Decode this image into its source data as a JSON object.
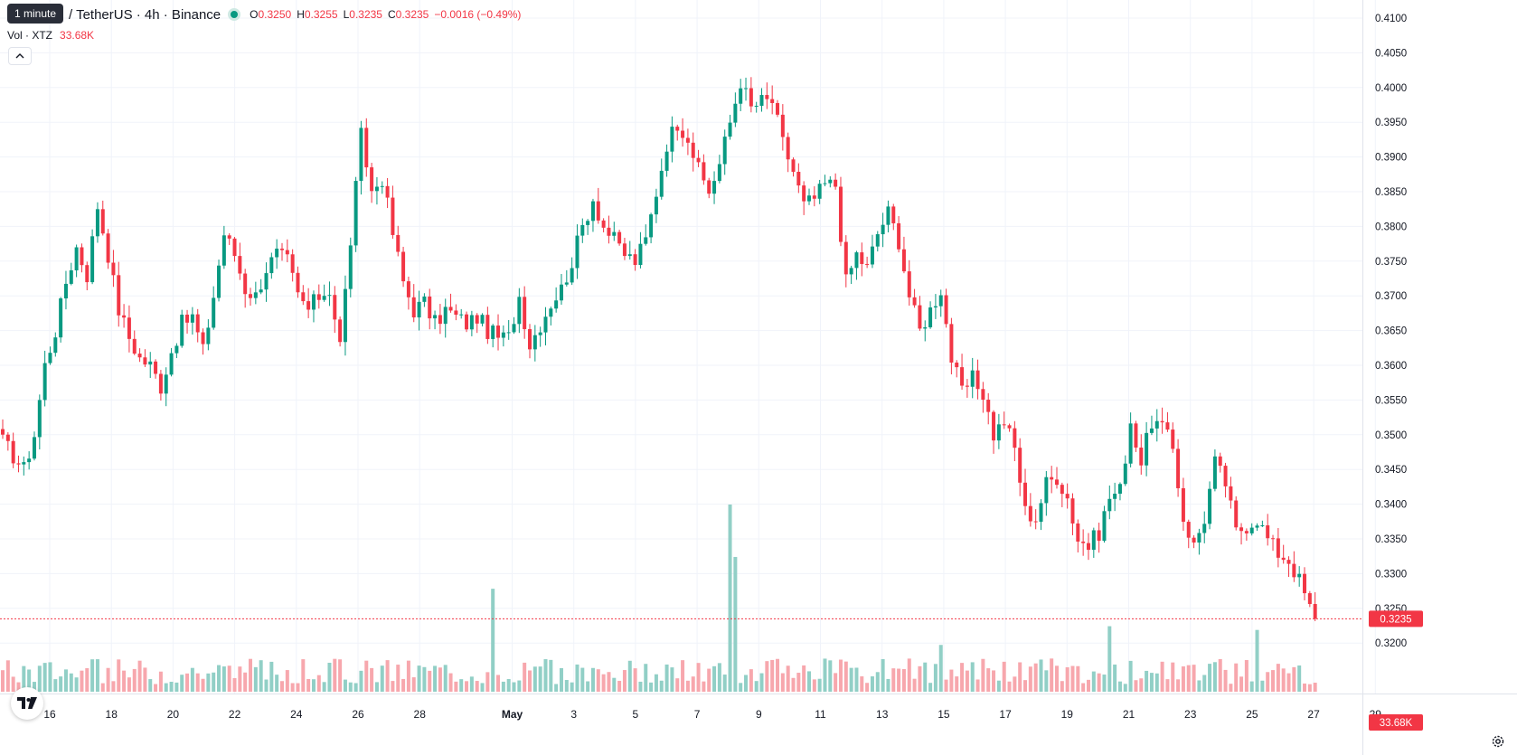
{
  "legend": {
    "symbol_text": "/ TetherUS · 4h · Binance",
    "ohlc": [
      {
        "key": "O",
        "value": "0.3250"
      },
      {
        "key": "H",
        "value": "0.3255"
      },
      {
        "key": "L",
        "value": "0.3235"
      },
      {
        "key": "C",
        "value": "0.3235"
      }
    ],
    "change": "−0.0016 (−0.49%)",
    "vol_label": "Vol · XTZ",
    "vol_value": "33.68K"
  },
  "interval_tooltip": "1 minute",
  "collapse_icon": "chevron-up-icon",
  "logo_text": "TV",
  "settings_icon": "gear-icon",
  "colors": {
    "up": "#089981",
    "down": "#f23645",
    "vol_up": "#91cfc6",
    "vol_down": "#f7a7ad",
    "grid": "#f0f3fa"
  },
  "chart_data": {
    "type": "candlestick",
    "title": "",
    "xlabel": "",
    "ylabel": "",
    "y_axis_ticks": [
      "0.4100",
      "0.4050",
      "0.4000",
      "0.3950",
      "0.3900",
      "0.3850",
      "0.3800",
      "0.3750",
      "0.3700",
      "0.3650",
      "0.3600",
      "0.3550",
      "0.3500",
      "0.3450",
      "0.3400",
      "0.3350",
      "0.3300",
      "0.3250",
      "0.3200"
    ],
    "ylim": [
      0.3185,
      0.411
    ],
    "x_axis_ticks": [
      {
        "label": "16",
        "day": 16,
        "bold": false
      },
      {
        "label": "18",
        "day": 18,
        "bold": false
      },
      {
        "label": "20",
        "day": 20,
        "bold": false
      },
      {
        "label": "22",
        "day": 22,
        "bold": false
      },
      {
        "label": "24",
        "day": 24,
        "bold": false
      },
      {
        "label": "26",
        "day": 26,
        "bold": false
      },
      {
        "label": "28",
        "day": 28,
        "bold": false
      },
      {
        "label": "May",
        "day": 31,
        "bold": true
      },
      {
        "label": "3",
        "day": 33,
        "bold": false
      },
      {
        "label": "5",
        "day": 35,
        "bold": false
      },
      {
        "label": "7",
        "day": 37,
        "bold": false
      },
      {
        "label": "9",
        "day": 39,
        "bold": false
      },
      {
        "label": "11",
        "day": 41,
        "bold": false
      },
      {
        "label": "13",
        "day": 43,
        "bold": false
      },
      {
        "label": "15",
        "day": 45,
        "bold": false
      },
      {
        "label": "17",
        "day": 47,
        "bold": false
      },
      {
        "label": "19",
        "day": 49,
        "bold": false
      },
      {
        "label": "21",
        "day": 51,
        "bold": false
      },
      {
        "label": "23",
        "day": 53,
        "bold": false
      },
      {
        "label": "25",
        "day": 55,
        "bold": false
      },
      {
        "label": "27",
        "day": 57,
        "bold": false
      },
      {
        "label": "29",
        "day": 59,
        "bold": false
      }
    ],
    "price_keypoints": [
      [
        0,
        0.349
      ],
      [
        2,
        0.347
      ],
      [
        4,
        0.345
      ],
      [
        6,
        0.35
      ],
      [
        8,
        0.36
      ],
      [
        10,
        0.365
      ],
      [
        12,
        0.372
      ],
      [
        14,
        0.377
      ],
      [
        16,
        0.373
      ],
      [
        18,
        0.383
      ],
      [
        20,
        0.376
      ],
      [
        22,
        0.368
      ],
      [
        24,
        0.364
      ],
      [
        26,
        0.361
      ],
      [
        28,
        0.36
      ],
      [
        30,
        0.357
      ],
      [
        32,
        0.362
      ],
      [
        34,
        0.366
      ],
      [
        36,
        0.367
      ],
      [
        38,
        0.362
      ],
      [
        40,
        0.37
      ],
      [
        42,
        0.379
      ],
      [
        44,
        0.376
      ],
      [
        46,
        0.371
      ],
      [
        48,
        0.37
      ],
      [
        50,
        0.374
      ],
      [
        52,
        0.376
      ],
      [
        54,
        0.375
      ],
      [
        56,
        0.37
      ],
      [
        58,
        0.368
      ],
      [
        60,
        0.37
      ],
      [
        62,
        0.371
      ],
      [
        64,
        0.363
      ],
      [
        66,
        0.378
      ],
      [
        68,
        0.393
      ],
      [
        70,
        0.385
      ],
      [
        72,
        0.387
      ],
      [
        74,
        0.379
      ],
      [
        76,
        0.372
      ],
      [
        78,
        0.368
      ],
      [
        80,
        0.369
      ],
      [
        82,
        0.366
      ],
      [
        84,
        0.368
      ],
      [
        86,
        0.367
      ],
      [
        88,
        0.366
      ],
      [
        90,
        0.367
      ],
      [
        92,
        0.365
      ],
      [
        94,
        0.364
      ],
      [
        96,
        0.364
      ],
      [
        98,
        0.37
      ],
      [
        100,
        0.363
      ],
      [
        102,
        0.366
      ],
      [
        104,
        0.369
      ],
      [
        106,
        0.371
      ],
      [
        108,
        0.375
      ],
      [
        110,
        0.38
      ],
      [
        112,
        0.384
      ],
      [
        114,
        0.38
      ],
      [
        116,
        0.378
      ],
      [
        118,
        0.376
      ],
      [
        120,
        0.375
      ],
      [
        122,
        0.378
      ],
      [
        124,
        0.385
      ],
      [
        126,
        0.392
      ],
      [
        128,
        0.395
      ],
      [
        130,
        0.393
      ],
      [
        132,
        0.388
      ],
      [
        134,
        0.385
      ],
      [
        136,
        0.389
      ],
      [
        138,
        0.395
      ],
      [
        140,
        0.401
      ],
      [
        142,
        0.397
      ],
      [
        144,
        0.398
      ],
      [
        146,
        0.398
      ],
      [
        148,
        0.392
      ],
      [
        150,
        0.388
      ],
      [
        152,
        0.383
      ],
      [
        154,
        0.384
      ],
      [
        156,
        0.386
      ],
      [
        158,
        0.386
      ],
      [
        160,
        0.372
      ],
      [
        162,
        0.376
      ],
      [
        164,
        0.374
      ],
      [
        166,
        0.379
      ],
      [
        168,
        0.382
      ],
      [
        170,
        0.378
      ],
      [
        172,
        0.37
      ],
      [
        174,
        0.365
      ],
      [
        176,
        0.368
      ],
      [
        178,
        0.371
      ],
      [
        180,
        0.361
      ],
      [
        182,
        0.356
      ],
      [
        184,
        0.358
      ],
      [
        186,
        0.356
      ],
      [
        188,
        0.35
      ],
      [
        190,
        0.352
      ],
      [
        192,
        0.348
      ],
      [
        194,
        0.339
      ],
      [
        196,
        0.338
      ],
      [
        198,
        0.343
      ],
      [
        200,
        0.344
      ],
      [
        202,
        0.341
      ],
      [
        204,
        0.335
      ],
      [
        206,
        0.334
      ],
      [
        208,
        0.336
      ],
      [
        210,
        0.341
      ],
      [
        212,
        0.342
      ],
      [
        214,
        0.352
      ],
      [
        216,
        0.346
      ],
      [
        218,
        0.352
      ],
      [
        220,
        0.351
      ],
      [
        222,
        0.348
      ],
      [
        224,
        0.338
      ],
      [
        226,
        0.334
      ],
      [
        228,
        0.338
      ],
      [
        230,
        0.346
      ],
      [
        232,
        0.343
      ],
      [
        234,
        0.336
      ],
      [
        236,
        0.337
      ],
      [
        238,
        0.338
      ],
      [
        240,
        0.335
      ],
      [
        242,
        0.333
      ],
      [
        244,
        0.332
      ],
      [
        246,
        0.329
      ],
      [
        248,
        0.325
      ],
      [
        249,
        0.3235
      ]
    ],
    "volume_spikes": [
      [
        93,
        0.55
      ],
      [
        138,
        1.0
      ],
      [
        139,
        0.72
      ],
      [
        178,
        0.25
      ],
      [
        210,
        0.35
      ],
      [
        238,
        0.33
      ],
      [
        250,
        0.18
      ]
    ],
    "last_price": "0.3235",
    "last_volume": "33.68K"
  }
}
